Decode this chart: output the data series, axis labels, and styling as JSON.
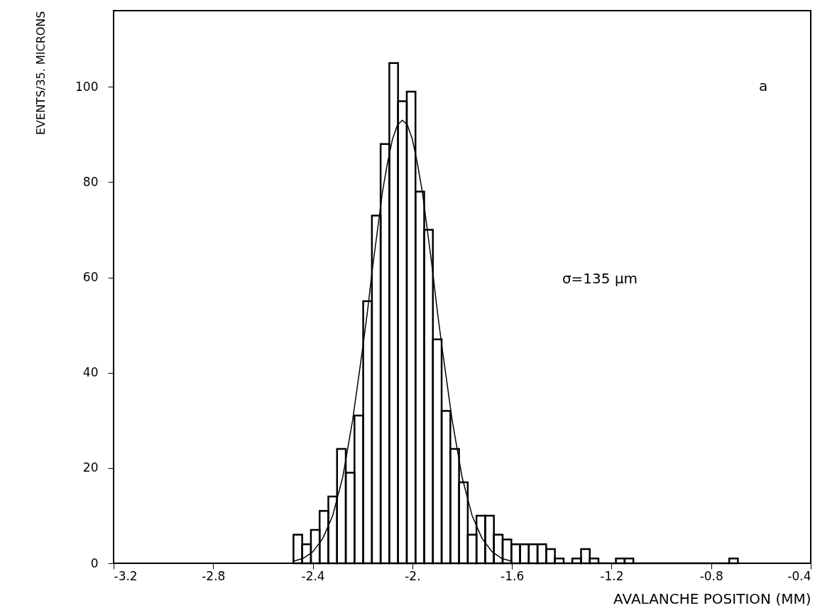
{
  "chart_data": {
    "type": "histogram",
    "xlabel": "AVALANCHE POSITION (MM)",
    "ylabel": "EVENTS/35. MICRONS",
    "annotations": [
      "a",
      "σ=135 µm"
    ],
    "xlim": [
      -3.2,
      -0.4
    ],
    "xticks": [
      -3.2,
      -2.8,
      -2.4,
      {
        "value": -2,
        "label": "-2."
      },
      -1.6,
      -1.2,
      -0.8,
      -0.4
    ],
    "ylim": [
      0,
      116
    ],
    "yticks": [
      0,
      20,
      40,
      60,
      80,
      100
    ],
    "grid": false,
    "series": [
      {
        "color": "#000000",
        "bins": [
          -2.4775,
          -2.4425,
          -2.4075,
          -2.3725,
          -2.3375,
          -2.3025,
          -2.2675,
          -2.2325,
          -2.1975,
          -2.1625,
          -2.1275,
          -2.0925,
          -2.0575,
          -2.0225,
          -1.9875,
          -1.9525,
          -1.9175,
          -1.8825,
          -1.8475,
          -1.8125,
          -1.7775,
          -1.7425,
          -1.7075,
          -1.6725,
          -1.6375,
          -1.6025,
          -1.5675,
          -1.5325,
          -1.4975,
          -1.4625,
          -1.4275,
          -1.3925,
          -1.3575,
          -1.3225,
          -1.2875,
          -1.2525,
          -1.2175,
          -1.1825,
          -1.1475,
          -1.1125,
          -1.0775,
          -1.0425,
          -1.0075,
          -0.9725,
          -0.9375,
          -0.9025,
          -0.8675,
          -0.8325,
          -0.7975,
          -0.7625,
          -0.7275,
          -0.6925
        ],
        "values": [
          6,
          4,
          7,
          11,
          14,
          24,
          19,
          31,
          55,
          73,
          88,
          105,
          97,
          99,
          78,
          70,
          47,
          32,
          24,
          17,
          6,
          10,
          10,
          6,
          5,
          4,
          4,
          4,
          4,
          3,
          1,
          0,
          1,
          3,
          1,
          0,
          0,
          1,
          1,
          0,
          0,
          0,
          0,
          0,
          0,
          0,
          0,
          0,
          0,
          0,
          1
        ]
      },
      {
        "type": "line",
        "color": "#000000",
        "x": [
          -2.48,
          -2.44,
          -2.4,
          -2.36,
          -2.32,
          -2.28,
          -2.24,
          -2.2,
          -2.18,
          -2.16,
          -2.14,
          -2.12,
          -2.1,
          -2.08,
          -2.06,
          -2.04,
          -2.02,
          -2.0,
          -1.98,
          -1.96,
          -1.94,
          -1.92,
          -1.9,
          -1.88,
          -1.84,
          -1.8,
          -1.76,
          -1.72,
          -1.68,
          -1.64,
          -1.6
        ],
        "values": [
          0.4,
          1.0,
          2.4,
          5.2,
          10,
          18,
          30,
          45,
          53,
          62,
          70,
          78,
          84,
          89,
          92,
          93,
          92,
          89,
          84,
          78,
          70,
          62,
          53,
          45,
          30,
          18,
          10,
          5.2,
          2.4,
          1.0,
          0.4
        ]
      }
    ]
  }
}
